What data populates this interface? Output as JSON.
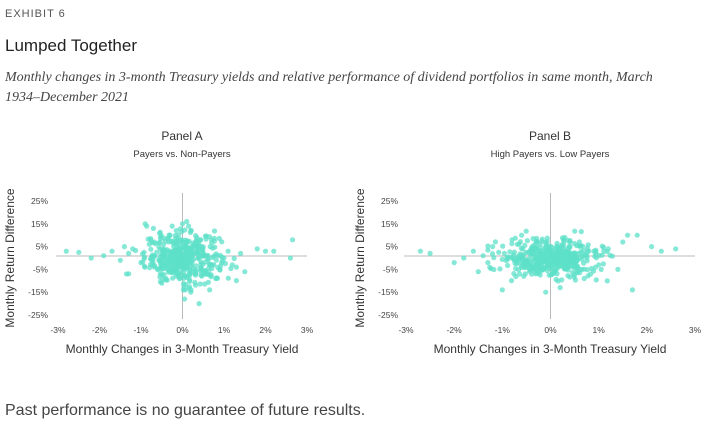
{
  "header": {
    "exhibit_label": "EXHIBIT 6",
    "title": "Lumped Together",
    "subtitle": "Monthly changes in 3-month Treasury yields and relative performance of dividend portfolios in same month, March 1934–December 2021"
  },
  "footer": {
    "disclaimer": "Past performance is no guarantee of future results."
  },
  "colors": {
    "points": "#5ee0c8",
    "axis_line": "#bbbbbb"
  },
  "chart_data": [
    {
      "type": "scatter",
      "title": "Panel A",
      "subtitle": "Payers vs. Non-Payers",
      "xlabel": "Monthly Changes in 3-Month Treasury Yield",
      "ylabel": "Monthly Return Difference",
      "xlim": [
        -3,
        3
      ],
      "ylim": [
        -25,
        25
      ],
      "x_ticks": [
        -3,
        -2,
        -1,
        0,
        1,
        2,
        3
      ],
      "x_tick_labels": [
        "-3%",
        "-2%",
        "-1%",
        "0%",
        "1%",
        "2%",
        "3%"
      ],
      "y_ticks": [
        25,
        15,
        5,
        -5,
        -15,
        -25
      ],
      "y_tick_labels": [
        "25%",
        "15%",
        "5%",
        "-5%",
        "-15%",
        "-25%"
      ],
      "cluster": {
        "x_spread": 0.45,
        "y_spread": 5.5,
        "count": 420
      },
      "points": [
        [
          -2.8,
          3
        ],
        [
          -2.5,
          2.5
        ],
        [
          -1.9,
          1
        ],
        [
          -1.7,
          3
        ],
        [
          -1.5,
          -1
        ],
        [
          -1.4,
          5
        ],
        [
          -1.35,
          -7
        ],
        [
          -1.2,
          4
        ],
        [
          -0.9,
          15
        ],
        [
          -0.7,
          13
        ],
        [
          -0.6,
          -5
        ],
        [
          -0.5,
          -11
        ],
        [
          -0.4,
          -9
        ],
        [
          -0.3,
          10
        ],
        [
          -0.15,
          12
        ],
        [
          0.0,
          15
        ],
        [
          0.1,
          16
        ],
        [
          0.2,
          -15
        ],
        [
          0.05,
          -18
        ],
        [
          0.4,
          -20
        ],
        [
          0.5,
          -7
        ],
        [
          0.7,
          8
        ],
        [
          0.9,
          -5
        ],
        [
          1.0,
          0
        ],
        [
          1.2,
          -3
        ],
        [
          1.3,
          -4
        ],
        [
          1.4,
          2
        ],
        [
          1.5,
          -6
        ],
        [
          1.8,
          4
        ],
        [
          2.0,
          3
        ],
        [
          2.2,
          3
        ],
        [
          2.6,
          0
        ],
        [
          2.65,
          8
        ],
        [
          -1.0,
          -2
        ],
        [
          -0.8,
          6
        ],
        [
          0.8,
          -9
        ],
        [
          1.1,
          3
        ],
        [
          -2.2,
          0
        ]
      ]
    },
    {
      "type": "scatter",
      "title": "Panel B",
      "subtitle": "High Payers vs. Low Payers",
      "xlabel": "Monthly Changes in 3-Month Treasury Yield",
      "ylabel": "Monthly Return Difference",
      "xlim": [
        -3,
        3
      ],
      "ylim": [
        -25,
        25
      ],
      "x_ticks": [
        -3,
        -2,
        -1,
        0,
        1,
        2,
        3
      ],
      "x_tick_labels": [
        "-3%",
        "-2%",
        "-1%",
        "0%",
        "1%",
        "2%",
        "3%"
      ],
      "y_ticks": [
        25,
        15,
        5,
        -5,
        -15,
        -25
      ],
      "y_tick_labels": [
        "25%",
        "15%",
        "5%",
        "-5%",
        "-15%",
        "-25%"
      ],
      "cluster": {
        "x_spread": 0.5,
        "y_spread": 4,
        "count": 450
      },
      "points": [
        [
          -2.7,
          3
        ],
        [
          -2.5,
          2
        ],
        [
          -2.0,
          -2
        ],
        [
          -1.8,
          0
        ],
        [
          -1.6,
          3
        ],
        [
          -1.5,
          -6
        ],
        [
          -1.3,
          -2
        ],
        [
          -1.2,
          5
        ],
        [
          -1.0,
          -14
        ],
        [
          -0.8,
          8
        ],
        [
          -0.6,
          10
        ],
        [
          -0.3,
          7
        ],
        [
          0.3,
          9
        ],
        [
          0.6,
          7
        ],
        [
          0.9,
          3
        ],
        [
          1.0,
          -3
        ],
        [
          1.2,
          4
        ],
        [
          1.4,
          -5
        ],
        [
          1.5,
          7
        ],
        [
          1.6,
          10
        ],
        [
          1.7,
          -14
        ],
        [
          1.8,
          10
        ],
        [
          2.1,
          5
        ],
        [
          2.3,
          3
        ],
        [
          2.6,
          4
        ],
        [
          0.2,
          -13
        ],
        [
          -0.1,
          -15
        ],
        [
          0.7,
          -9
        ],
        [
          -1.4,
          1
        ],
        [
          -0.5,
          -4
        ]
      ]
    }
  ]
}
